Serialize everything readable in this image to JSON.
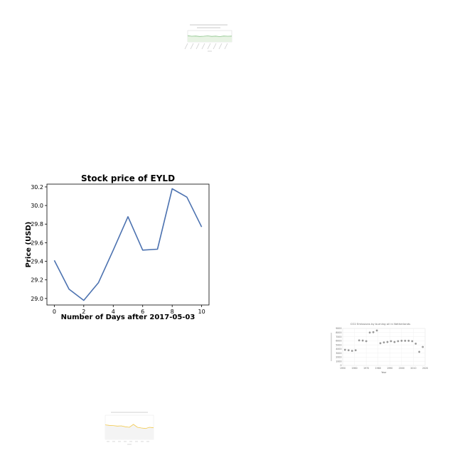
{
  "chart_data": [
    {
      "id": "main",
      "type": "line",
      "title": "Stock price of EYLD",
      "xlabel": "Number of Days after 2017-05-03",
      "ylabel": "Price (USD)",
      "x": [
        0,
        1,
        2,
        3,
        4,
        5,
        6,
        7,
        8,
        9,
        10
      ],
      "values": [
        29.41,
        29.1,
        28.98,
        29.17,
        29.52,
        29.88,
        29.52,
        29.53,
        30.18,
        30.09,
        29.77
      ],
      "xlim": [
        -0.5,
        10.5
      ],
      "ylim": [
        28.93,
        30.23
      ],
      "xticks": [
        0,
        2,
        4,
        6,
        8,
        10
      ],
      "yticks": [
        "29.0",
        "29.2",
        "29.4",
        "29.6",
        "29.8",
        "30.0",
        "30.2"
      ],
      "yticks_values": [
        29.0,
        29.2,
        29.4,
        29.6,
        29.8,
        30.0,
        30.2
      ],
      "color": "#4c72b0",
      "grid": false
    },
    {
      "id": "thumb-top",
      "type": "area",
      "values": [
        0.55,
        0.5,
        0.52,
        0.48,
        0.5,
        0.53,
        0.49,
        0.51,
        0.47,
        0.52,
        0.5,
        0.51
      ],
      "color": "#8bc48a"
    },
    {
      "id": "thumb-scatter",
      "type": "scatter",
      "title": "CO2 Emissions by burning oil in Netherlands",
      "xlabel": "Year",
      "xticks": [
        "1950",
        "1960",
        "1970",
        "1980",
        "1990",
        "2000",
        "2010",
        "2020"
      ],
      "yticks": [
        "0",
        "1000",
        "2000",
        "3000",
        "4000",
        "5000",
        "6000",
        "7000",
        "8000",
        "9000"
      ],
      "xlim": [
        1950,
        2020
      ],
      "ylim": [
        0,
        9000
      ],
      "x": [
        1952,
        1955,
        1958,
        1961,
        1964,
        1967,
        1970,
        1973,
        1976,
        1979,
        1982,
        1985,
        1988,
        1991,
        1994,
        1997,
        2000,
        2003,
        2006,
        2009,
        2012,
        2015,
        2018
      ],
      "values": [
        3800,
        3700,
        3550,
        3700,
        6100,
        6050,
        5900,
        8000,
        8100,
        8500,
        5400,
        5600,
        5700,
        5900,
        5700,
        5900,
        6000,
        6000,
        6000,
        5900,
        5300,
        3300,
        4500
      ],
      "color": "#999999"
    },
    {
      "id": "thumb-bottom",
      "type": "area",
      "values": [
        0.6,
        0.58,
        0.57,
        0.55,
        0.56,
        0.52,
        0.5,
        0.62,
        0.5,
        0.47,
        0.45,
        0.5,
        0.48
      ],
      "color": "#f2c94c"
    }
  ]
}
